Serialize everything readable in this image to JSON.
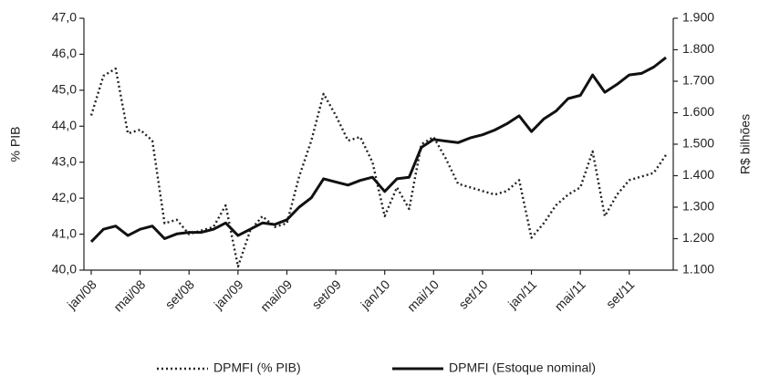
{
  "chart_data": {
    "type": "line",
    "categories": [
      "jan/08",
      null,
      null,
      null,
      "mai/08",
      null,
      null,
      null,
      "set/08",
      null,
      null,
      null,
      "jan/09",
      null,
      null,
      null,
      "mai/09",
      null,
      null,
      null,
      "set/09",
      null,
      null,
      null,
      "jan/10",
      null,
      null,
      null,
      "mai/10",
      null,
      null,
      null,
      "set/10",
      null,
      null,
      null,
      "jan/11",
      null,
      null,
      null,
      "mai/11",
      null,
      null,
      null,
      "set/11",
      null,
      null,
      null
    ],
    "series": [
      {
        "name": "DPMFI (% PIB)",
        "color": "#222222",
        "dash": "dotted",
        "values": [
          44.3,
          45.4,
          45.6,
          43.8,
          43.9,
          43.6,
          41.3,
          41.4,
          41.0,
          41.1,
          41.2,
          41.8,
          40.1,
          41.1,
          41.5,
          41.2,
          41.3,
          42.6,
          43.6,
          44.9,
          44.3,
          43.6,
          43.7,
          43.0,
          41.5,
          42.3,
          41.7,
          43.5,
          43.7,
          43.1,
          42.4,
          42.3,
          42.2,
          42.1,
          42.2,
          42.5,
          40.9,
          41.3,
          41.8,
          42.1,
          42.3,
          43.3,
          41.5,
          42.1,
          42.5,
          42.6,
          42.7,
          43.2
        ]
      },
      {
        "name": "DPMFI (Estoque nominal)",
        "color": "#111111",
        "dash": "solid",
        "axis": "y2",
        "values": [
          1190,
          1230,
          1240,
          1210,
          1230,
          1240,
          1200,
          1215,
          1220,
          1220,
          1230,
          1250,
          1210,
          1230,
          1250,
          1245,
          1260,
          1300,
          1330,
          1390,
          1380,
          1370,
          1385,
          1395,
          1350,
          1390,
          1395,
          1490,
          1515,
          1510,
          1505,
          1520,
          1530,
          1545,
          1565,
          1590,
          1540,
          1580,
          1605,
          1645,
          1655,
          1720,
          1665,
          1690,
          1720,
          1725,
          1745,
          1775
        ]
      }
    ],
    "ylabel": "% PIB",
    "y2label": "R$ bilhões",
    "ylim": [
      40,
      47
    ],
    "yticks": [
      {
        "value": 40,
        "label": "40,0"
      },
      {
        "value": 41,
        "label": "41,0"
      },
      {
        "value": 42,
        "label": "42,0"
      },
      {
        "value": 43,
        "label": "43,0"
      },
      {
        "value": 44,
        "label": "44,0"
      },
      {
        "value": 45,
        "label": "45,0"
      },
      {
        "value": 46,
        "label": "46,0"
      },
      {
        "value": 47,
        "label": "47,0"
      }
    ],
    "y2lim": [
      1100,
      1900
    ],
    "y2ticks": [
      {
        "value": 1100,
        "label": "1.100"
      },
      {
        "value": 1200,
        "label": "1.200"
      },
      {
        "value": 1300,
        "label": "1.300"
      },
      {
        "value": 1400,
        "label": "1.400"
      },
      {
        "value": 1500,
        "label": "1.500"
      },
      {
        "value": 1600,
        "label": "1.600"
      },
      {
        "value": 1700,
        "label": "1.700"
      },
      {
        "value": 1800,
        "label": "1.800"
      },
      {
        "value": 1900,
        "label": "1.900"
      }
    ],
    "legend": "bottom"
  }
}
